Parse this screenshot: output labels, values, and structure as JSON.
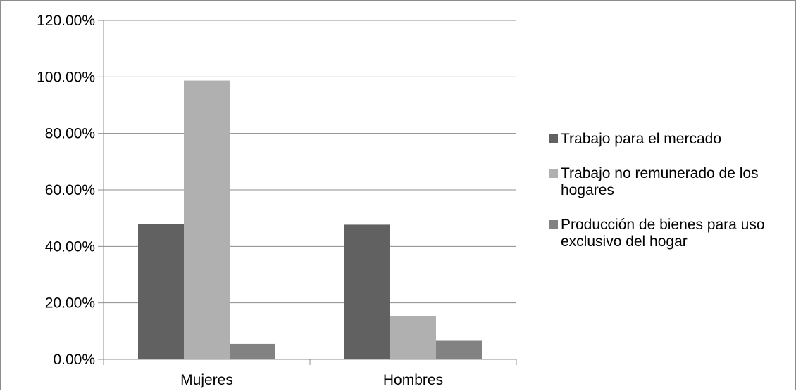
{
  "chart_data": {
    "type": "bar",
    "title": "",
    "xlabel": "",
    "ylabel": "",
    "categories": [
      "Mujeres",
      "Hombres"
    ],
    "ylim": [
      0,
      1.2
    ],
    "yticks": [
      "0.00%",
      "20.00%",
      "40.00%",
      "60.00%",
      "80.00%",
      "100.00%",
      "120.00%"
    ],
    "grid": true,
    "legend_position": "right",
    "series": [
      {
        "name": "Trabajo para el mercado",
        "color": "#616161",
        "values": [
          0.48,
          0.477
        ]
      },
      {
        "name": "Trabajo no remunerado de los hogares",
        "color": "#b0b0b0",
        "values": [
          0.987,
          0.152
        ]
      },
      {
        "name": "Producción de bienes para uso exclusivo del hogar",
        "color": "#828282",
        "values": [
          0.055,
          0.066
        ]
      }
    ]
  }
}
